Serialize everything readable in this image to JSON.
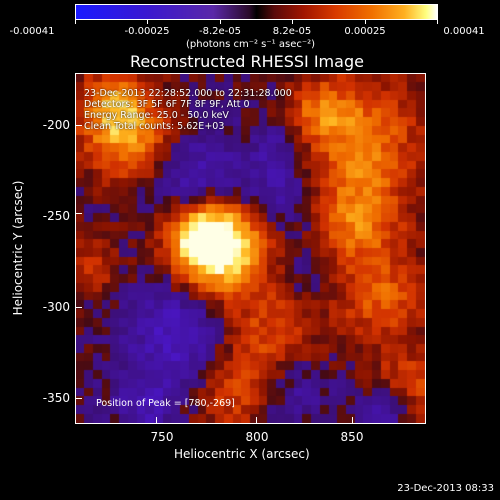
{
  "colorbar": {
    "ticks": [
      "-0.00041",
      "-0.00025",
      "-8.2e-05",
      "8.2e-05",
      "0.00025",
      "0.00041"
    ],
    "units": "(photons cm⁻² s⁻¹ asec⁻²)"
  },
  "title": "Reconstructed RHESSI Image",
  "annotations": {
    "line1": "23-Dec-2013 22:28:52.000 to 22:31:28.000",
    "line2": "Detectors: 3F 5F 6F 7F 8F 9F, Att 0",
    "line3": "Energy Range: 25.0 - 50.0 keV",
    "line4": "Clean     Total counts: 5.62E+03",
    "peak": "Position of Peak = [780,-269]"
  },
  "axes": {
    "xlabel": "Heliocentric X (arcsec)",
    "ylabel": "Heliocentric Y (arcsec)",
    "xticks": [
      "750",
      "800",
      "850"
    ],
    "yticks": [
      "-200",
      "-250",
      "-300",
      "-350"
    ]
  },
  "timestamp": "23-Dec-2013 08:33"
}
